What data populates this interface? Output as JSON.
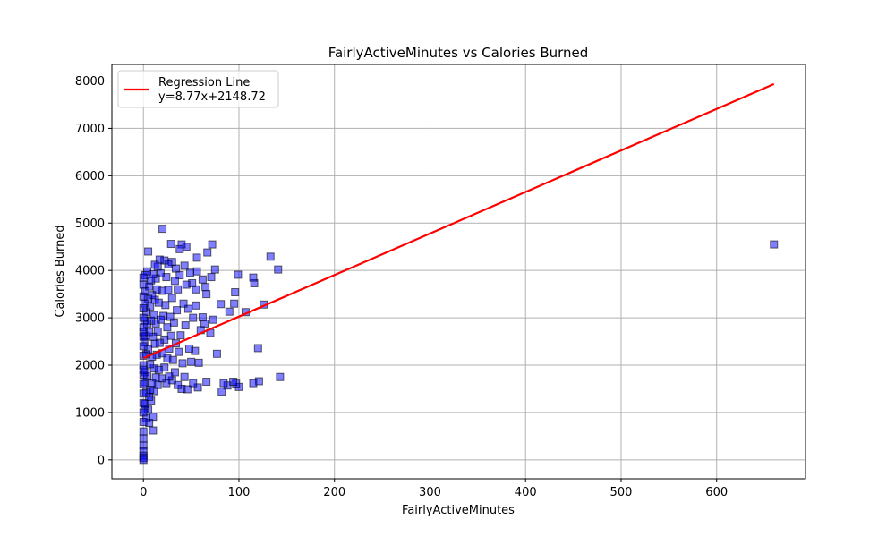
{
  "chart_data": {
    "type": "scatter",
    "title": "FairlyActiveMinutes vs Calories Burned",
    "xlabel": "FairlyActiveMinutes",
    "ylabel": "Calories Burned",
    "xlim": [
      -33,
      693
    ],
    "ylim": [
      -400,
      8350
    ],
    "xticks": [
      0,
      100,
      200,
      300,
      400,
      500,
      600
    ],
    "yticks": [
      0,
      1000,
      2000,
      3000,
      4000,
      5000,
      6000,
      7000,
      8000
    ],
    "grid": true,
    "legend": {
      "placement": "upper-left",
      "entries": [
        "Regression Line",
        "y=8.77x+2148.72"
      ]
    },
    "regression": {
      "slope": 8.77,
      "intercept": 2148.72,
      "x_range": [
        0,
        660
      ],
      "color": "#ff0000"
    },
    "marker_color": "#0000ff",
    "points": [
      [
        660,
        4550
      ],
      [
        143,
        1750
      ],
      [
        141,
        4020
      ],
      [
        133,
        4290
      ],
      [
        126,
        3280
      ],
      [
        121,
        1660
      ],
      [
        120,
        2360
      ],
      [
        116,
        3730
      ],
      [
        115,
        3850
      ],
      [
        115,
        1620
      ],
      [
        107,
        3120
      ],
      [
        100,
        1540
      ],
      [
        99,
        3910
      ],
      [
        97,
        1610
      ],
      [
        96,
        3540
      ],
      [
        95,
        3300
      ],
      [
        94,
        1650
      ],
      [
        90,
        3130
      ],
      [
        88,
        1570
      ],
      [
        84,
        1620
      ],
      [
        82,
        1440
      ],
      [
        81,
        3290
      ],
      [
        77,
        2240
      ],
      [
        75,
        4020
      ],
      [
        73,
        2960
      ],
      [
        72,
        4550
      ],
      [
        71,
        3860
      ],
      [
        70,
        2680
      ],
      [
        67,
        4380
      ],
      [
        66,
        1650
      ],
      [
        66,
        3500
      ],
      [
        65,
        3650
      ],
      [
        64,
        2880
      ],
      [
        62,
        3010
      ],
      [
        62,
        3810
      ],
      [
        60,
        2740
      ],
      [
        58,
        2050
      ],
      [
        57,
        1530
      ],
      [
        56,
        3980
      ],
      [
        56,
        4270
      ],
      [
        55,
        3260
      ],
      [
        55,
        3600
      ],
      [
        54,
        2300
      ],
      [
        52,
        1620
      ],
      [
        52,
        3000
      ],
      [
        51,
        3730
      ],
      [
        50,
        2070
      ],
      [
        49,
        3950
      ],
      [
        48,
        2350
      ],
      [
        47,
        3190
      ],
      [
        46,
        1490
      ],
      [
        45,
        4500
      ],
      [
        45,
        3700
      ],
      [
        44,
        2840
      ],
      [
        43,
        4100
      ],
      [
        43,
        1750
      ],
      [
        42,
        3300
      ],
      [
        41,
        2040
      ],
      [
        40,
        4550
      ],
      [
        40,
        1500
      ],
      [
        39,
        2630
      ],
      [
        38,
        3900
      ],
      [
        38,
        4450
      ],
      [
        37,
        2280
      ],
      [
        36,
        3600
      ],
      [
        36,
        1580
      ],
      [
        35,
        3160
      ],
      [
        34,
        4040
      ],
      [
        34,
        2460
      ],
      [
        33,
        1850
      ],
      [
        33,
        3780
      ],
      [
        32,
        2900
      ],
      [
        31,
        2110
      ],
      [
        30,
        4180
      ],
      [
        30,
        3420
      ],
      [
        30,
        1680
      ],
      [
        29,
        4560
      ],
      [
        29,
        2620
      ],
      [
        28,
        3020
      ],
      [
        27,
        2350
      ],
      [
        27,
        1760
      ],
      [
        26,
        4130
      ],
      [
        26,
        3590
      ],
      [
        25,
        2800
      ],
      [
        25,
        2140
      ],
      [
        24,
        3860
      ],
      [
        24,
        1620
      ],
      [
        23,
        3270
      ],
      [
        22,
        4210
      ],
      [
        22,
        2540
      ],
      [
        22,
        1950
      ],
      [
        21,
        3040
      ],
      [
        20,
        4880
      ],
      [
        20,
        3570
      ],
      [
        20,
        2250
      ],
      [
        19,
        1720
      ],
      [
        18,
        3940
      ],
      [
        18,
        2960
      ],
      [
        17,
        4230
      ],
      [
        17,
        2470
      ],
      [
        16,
        3320
      ],
      [
        16,
        1900
      ],
      [
        15,
        4080
      ],
      [
        15,
        2710
      ],
      [
        15,
        1580
      ],
      [
        14,
        3600
      ],
      [
        14,
        2220
      ],
      [
        13,
        3830
      ],
      [
        13,
        2880
      ],
      [
        13,
        1740
      ],
      [
        12,
        4120
      ],
      [
        12,
        3380
      ],
      [
        12,
        2450
      ],
      [
        11,
        3060
      ],
      [
        11,
        1930
      ],
      [
        11,
        1450
      ],
      [
        10,
        3920
      ],
      [
        10,
        2600
      ],
      [
        10,
        910
      ],
      [
        10,
        620
      ],
      [
        9,
        3480
      ],
      [
        9,
        2180
      ],
      [
        9,
        1620
      ],
      [
        8,
        3790
      ],
      [
        8,
        2940
      ],
      [
        8,
        1250
      ],
      [
        7,
        3240
      ],
      [
        7,
        2020
      ],
      [
        7,
        1480
      ],
      [
        6,
        3660
      ],
      [
        6,
        2700
      ],
      [
        6,
        1330
      ],
      [
        6,
        780
      ],
      [
        5,
        3400
      ],
      [
        5,
        2340
      ],
      [
        5,
        1060
      ],
      [
        5,
        4400
      ],
      [
        4,
        2880
      ],
      [
        4,
        1760
      ],
      [
        4,
        3980
      ],
      [
        3,
        3120
      ],
      [
        3,
        2230
      ],
      [
        3,
        1420
      ],
      [
        3,
        880
      ],
      [
        2,
        3560
      ],
      [
        2,
        2620
      ],
      [
        2,
        1850
      ],
      [
        2,
        1180
      ],
      [
        2,
        3900
      ],
      [
        1,
        3300
      ],
      [
        1,
        2480
      ],
      [
        1,
        1640
      ],
      [
        1,
        2940
      ],
      [
        1,
        1060
      ],
      [
        0,
        3700
      ],
      [
        0,
        3450
      ],
      [
        0,
        3200
      ],
      [
        0,
        3000
      ],
      [
        0,
        2800
      ],
      [
        0,
        2600
      ],
      [
        0,
        2400
      ],
      [
        0,
        2200
      ],
      [
        0,
        2000
      ],
      [
        0,
        1800
      ],
      [
        0,
        1600
      ],
      [
        0,
        1400
      ],
      [
        0,
        1200
      ],
      [
        0,
        1000
      ],
      [
        0,
        800
      ],
      [
        0,
        600
      ],
      [
        0,
        450
      ],
      [
        0,
        300
      ],
      [
        0,
        180
      ],
      [
        0,
        90
      ],
      [
        0,
        40
      ],
      [
        0,
        0
      ],
      [
        0,
        3850
      ],
      [
        0,
        2700
      ],
      [
        0,
        1900
      ]
    ]
  }
}
